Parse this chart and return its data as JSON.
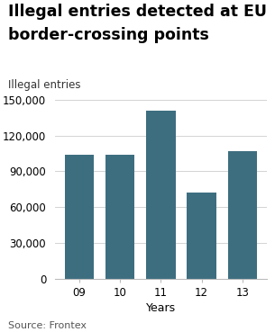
{
  "title_line1": "Illegal entries detected at EU",
  "title_line2": "border-crossing points",
  "ylabel": "Illegal entries",
  "xlabel": "Years",
  "source": "Source: Frontex",
  "categories": [
    "09",
    "10",
    "11",
    "12",
    "13"
  ],
  "values": [
    104000,
    104000,
    141000,
    72500,
    107000
  ],
  "bar_color": "#3d6e80",
  "ylim": [
    0,
    150000
  ],
  "yticks": [
    0,
    30000,
    60000,
    90000,
    120000,
    150000
  ],
  "background_color": "#ffffff",
  "title_fontsize": 12.5,
  "ylabel_fontsize": 8.5,
  "xlabel_fontsize": 9,
  "tick_fontsize": 8.5,
  "source_fontsize": 8
}
